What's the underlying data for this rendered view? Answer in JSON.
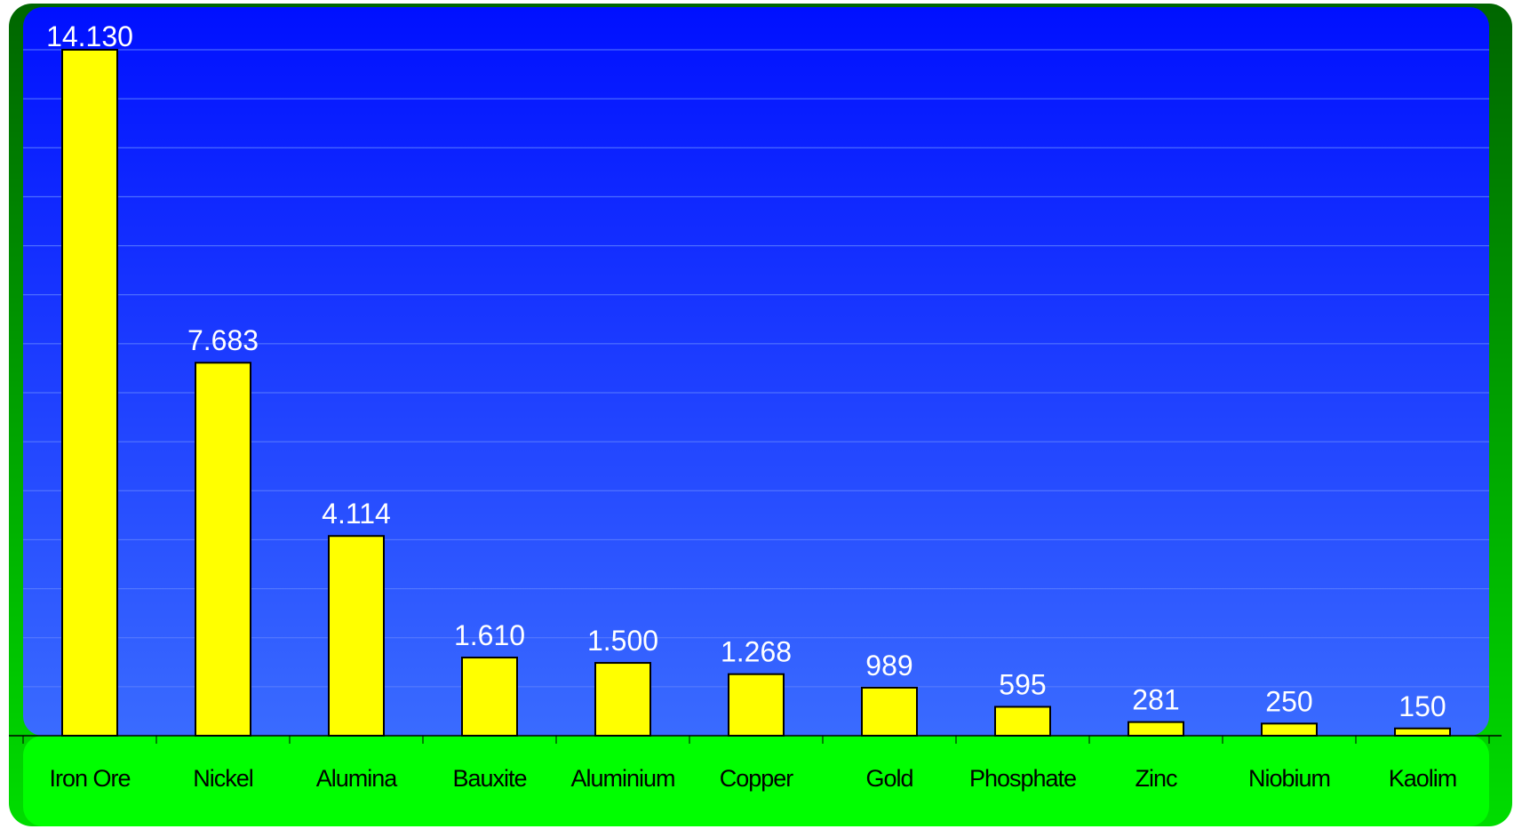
{
  "chart_data": {
    "type": "bar",
    "title": "",
    "xlabel": "",
    "ylabel": "",
    "categories": [
      "Iron Ore",
      "Nickel",
      "Alumina",
      "Bauxite",
      "Aluminium",
      "Copper",
      "Gold",
      "Phosphate",
      "Zinc",
      "Niobium",
      "Kaolim"
    ],
    "values": [
      14130,
      7683,
      4114,
      1610,
      1500,
      1268,
      989,
      595,
      281,
      250,
      150
    ],
    "value_labels": [
      "14.130",
      "7.683",
      "4.114",
      "1.610",
      "1.500",
      "1.268",
      "989",
      "595",
      "281",
      "250",
      "150"
    ],
    "ylim": [
      0,
      14130
    ],
    "grid": true,
    "legend": "none",
    "colors": {
      "bar_fill": "#ffff00",
      "bar_stroke": "#000000",
      "plot_top": "#0010ff",
      "plot_bottom": "#3a6bff",
      "floor": "#00ff00",
      "frame_light": "#00dd00",
      "frame_dark": "#006600",
      "gridline": "#5a7dff",
      "data_label": "#ffffff",
      "tick_label": "#000000"
    }
  }
}
